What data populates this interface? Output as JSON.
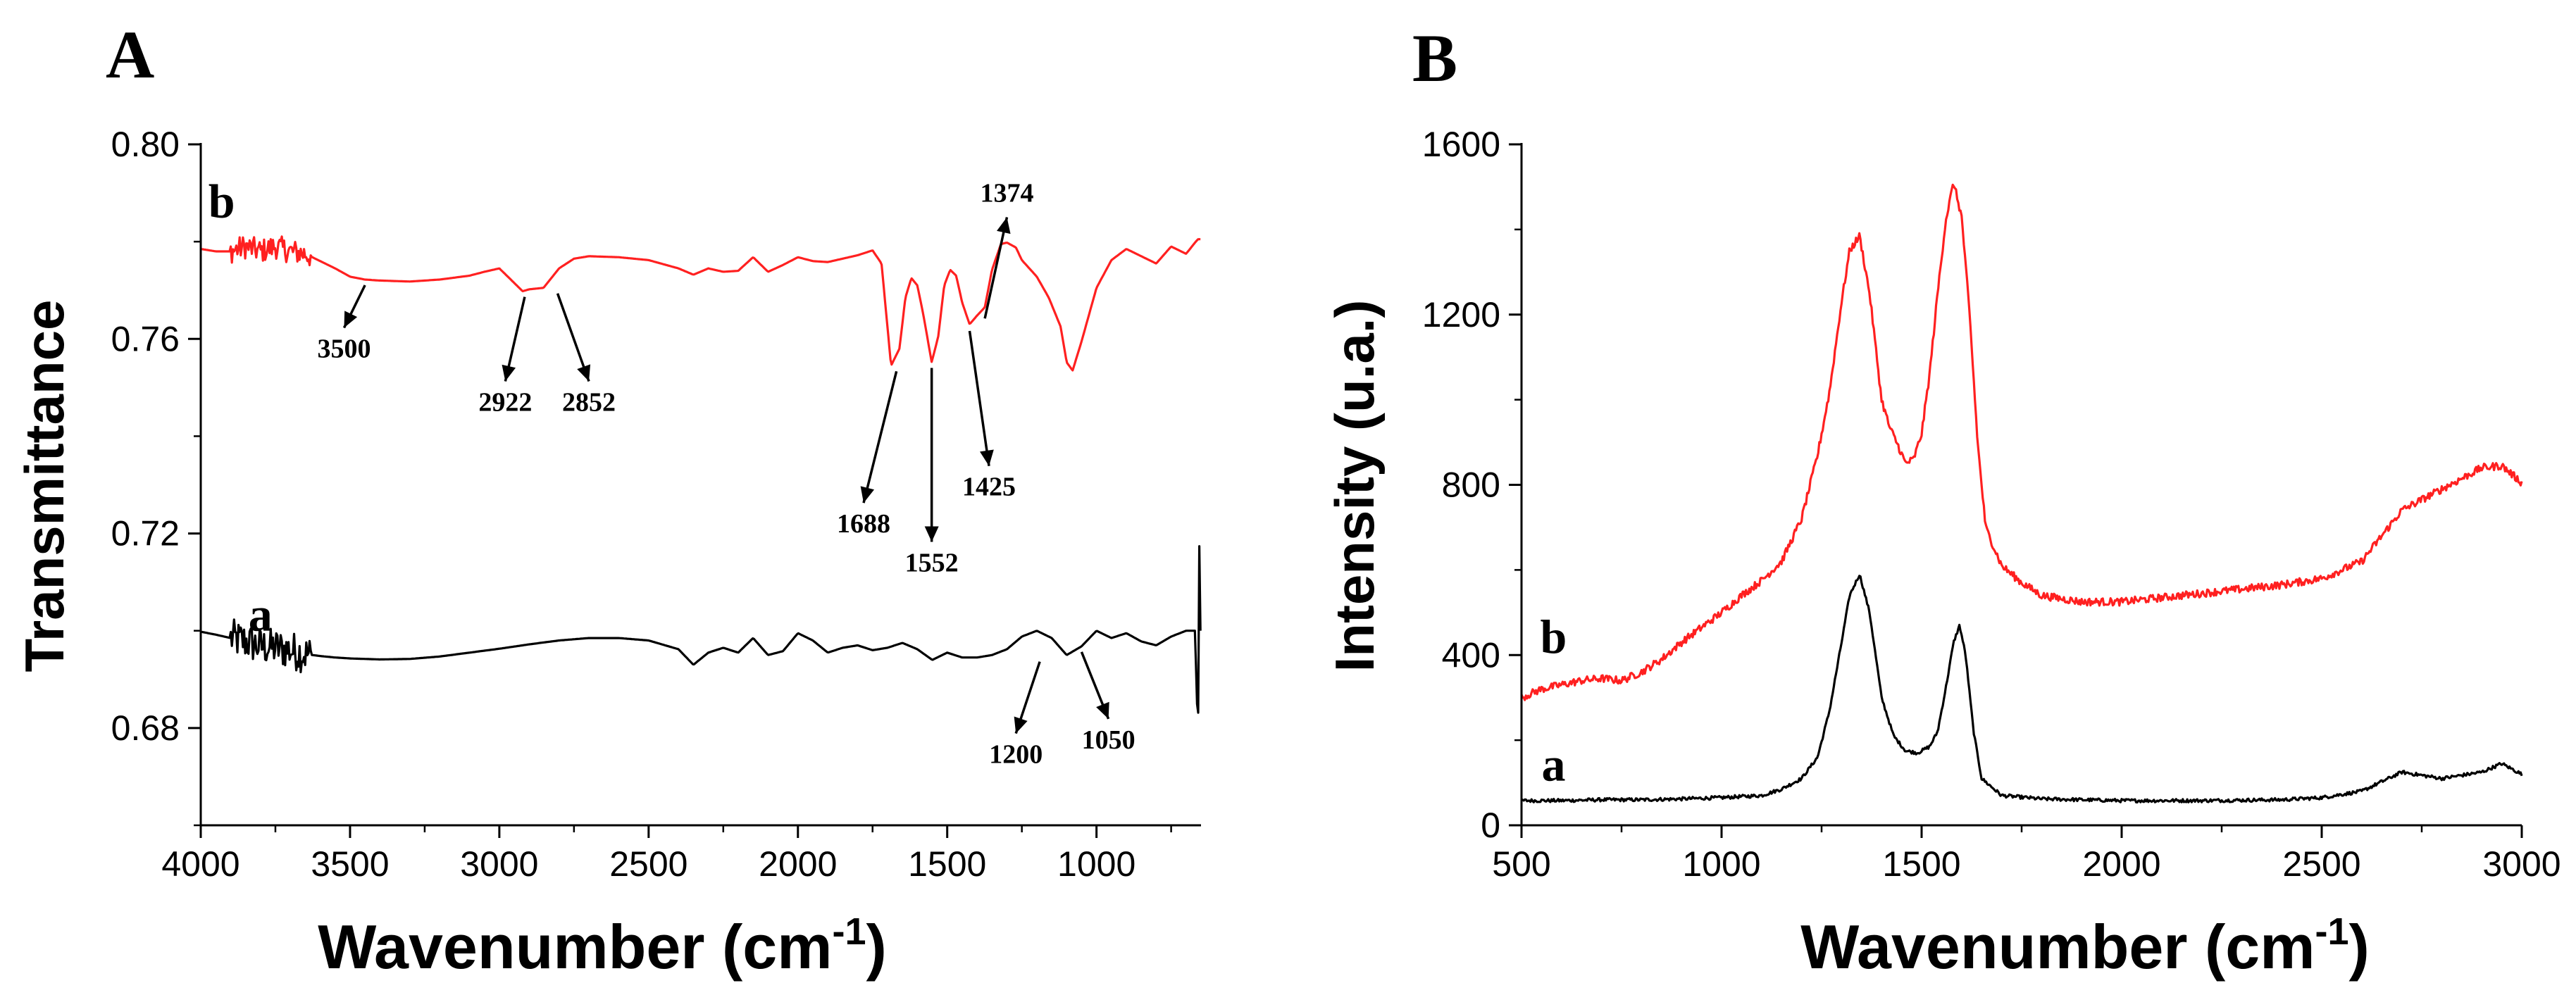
{
  "colors": {
    "a": "#000000",
    "b": "#ff2020",
    "axis": "#000000",
    "text": "#000000"
  },
  "chart_data": [
    {
      "panel": "A",
      "type": "line",
      "technique": "FTIR",
      "xlabel": "Wavenumber",
      "xunit_base": "cm",
      "xunit_exp": "-1",
      "ylabel": "Transmittance",
      "xlim": [
        4000,
        650
      ],
      "ylim": [
        0.66,
        0.8
      ],
      "xticks": [
        4000,
        3500,
        3000,
        2500,
        2000,
        1500,
        1000
      ],
      "yticks": [
        0.68,
        0.72,
        0.76,
        0.8
      ],
      "ytick_labels": [
        "0.68",
        "0.72",
        "0.76",
        "0.80"
      ],
      "series": [
        {
          "name": "a",
          "label": "a",
          "color": "#000000",
          "label_at": [
            3800,
            0.7
          ],
          "x": [
            4000,
            3950,
            3900,
            3850,
            3800,
            3750,
            3700,
            3650,
            3600,
            3550,
            3500,
            3450,
            3400,
            3300,
            3200,
            3100,
            3000,
            2900,
            2800,
            2700,
            2600,
            2500,
            2400,
            2350,
            2300,
            2250,
            2200,
            2150,
            2100,
            2050,
            2000,
            1950,
            1900,
            1850,
            1800,
            1750,
            1700,
            1650,
            1600,
            1550,
            1500,
            1450,
            1400,
            1350,
            1300,
            1250,
            1200,
            1150,
            1100,
            1050,
            1000,
            950,
            900,
            850,
            800,
            750,
            700,
            670,
            660,
            655,
            652
          ],
          "values": [
            0.6998,
            0.6992,
            0.6985,
            0.6978,
            0.6968,
            0.6965,
            0.696,
            0.6952,
            0.6948,
            0.6945,
            0.6943,
            0.6942,
            0.6941,
            0.6942,
            0.6947,
            0.6955,
            0.6963,
            0.6972,
            0.698,
            0.6985,
            0.6985,
            0.698,
            0.6962,
            0.693,
            0.6955,
            0.6965,
            0.6955,
            0.6985,
            0.695,
            0.6958,
            0.6995,
            0.698,
            0.6955,
            0.6965,
            0.697,
            0.696,
            0.6965,
            0.6975,
            0.6962,
            0.694,
            0.6955,
            0.6945,
            0.6945,
            0.695,
            0.6962,
            0.6988,
            0.7,
            0.6985,
            0.695,
            0.6968,
            0.7,
            0.6985,
            0.6995,
            0.6978,
            0.697,
            0.6988,
            0.7,
            0.7,
            0.678,
            0.724,
            0.7
          ],
          "noise": [
            [
              3900,
              3630,
              0.004
            ]
          ]
        },
        {
          "name": "b",
          "label": "b",
          "color": "#ff2020",
          "label_at": [
            3930,
            0.785
          ],
          "x": [
            4000,
            3950,
            3900,
            3850,
            3800,
            3750,
            3700,
            3650,
            3600,
            3550,
            3500,
            3450,
            3400,
            3300,
            3200,
            3100,
            3050,
            3000,
            2950,
            2922,
            2900,
            2852,
            2800,
            2750,
            2700,
            2600,
            2500,
            2400,
            2350,
            2300,
            2250,
            2200,
            2150,
            2100,
            2050,
            2000,
            1950,
            1900,
            1850,
            1800,
            1750,
            1720,
            1688,
            1660,
            1640,
            1620,
            1600,
            1580,
            1552,
            1530,
            1510,
            1490,
            1470,
            1450,
            1425,
            1400,
            1374,
            1350,
            1320,
            1300,
            1270,
            1250,
            1200,
            1160,
            1120,
            1100,
            1080,
            1050,
            1000,
            950,
            900,
            850,
            800,
            750,
            700,
            670,
            660,
            652
          ],
          "values": [
            0.7785,
            0.778,
            0.778,
            0.779,
            0.778,
            0.779,
            0.778,
            0.7775,
            0.776,
            0.7745,
            0.7728,
            0.7722,
            0.772,
            0.7718,
            0.7722,
            0.773,
            0.7738,
            0.7745,
            0.7715,
            0.7698,
            0.7702,
            0.7705,
            0.7745,
            0.7765,
            0.777,
            0.7768,
            0.7762,
            0.7745,
            0.7732,
            0.7745,
            0.7738,
            0.774,
            0.7768,
            0.7738,
            0.7752,
            0.7768,
            0.776,
            0.7758,
            0.7765,
            0.7772,
            0.7782,
            0.7755,
            0.7545,
            0.758,
            0.7685,
            0.7725,
            0.771,
            0.765,
            0.7552,
            0.7605,
            0.771,
            0.7742,
            0.773,
            0.7675,
            0.763,
            0.7648,
            0.7665,
            0.7742,
            0.7795,
            0.7798,
            0.7788,
            0.7762,
            0.7728,
            0.7685,
            0.7625,
            0.7552,
            0.7535,
            0.7595,
            0.7705,
            0.7762,
            0.7785,
            0.777,
            0.7755,
            0.779,
            0.7775,
            0.7798,
            0.7805,
            0.7805
          ],
          "noise": [
            [
              3900,
              3630,
              0.0025
            ]
          ]
        }
      ],
      "annotations": [
        {
          "text": "3500",
          "peak": [
            3450,
            0.7722
          ],
          "label_at": [
            3520,
            0.7562
          ],
          "arrow": "down"
        },
        {
          "text": "2922",
          "peak": [
            2915,
            0.7698
          ],
          "label_at": [
            2980,
            0.7452
          ],
          "arrow": "down"
        },
        {
          "text": "2852",
          "peak": [
            2805,
            0.7705
          ],
          "label_at": [
            2700,
            0.7452
          ],
          "arrow": "down"
        },
        {
          "text": "1688",
          "peak": [
            1670,
            0.7545
          ],
          "label_at": [
            1780,
            0.7202
          ],
          "arrow": "down"
        },
        {
          "text": "1552",
          "peak": [
            1552,
            0.7552
          ],
          "label_at": [
            1552,
            0.7122
          ],
          "arrow": "down"
        },
        {
          "text": "1425",
          "peak": [
            1425,
            0.7628
          ],
          "label_at": [
            1360,
            0.7278
          ],
          "arrow": "down"
        },
        {
          "text": "1374",
          "peak": [
            1374,
            0.7642
          ],
          "label_at": [
            1300,
            0.7882
          ],
          "arrow": "up"
        },
        {
          "text": "1200",
          "peak": [
            1190,
            0.6948
          ],
          "label_at": [
            1270,
            0.6728
          ],
          "arrow": "down"
        },
        {
          "text": "1050",
          "peak": [
            1050,
            0.6968
          ],
          "label_at": [
            960,
            0.6758
          ],
          "arrow": "down"
        }
      ]
    },
    {
      "panel": "B",
      "type": "line",
      "technique": "Raman",
      "xlabel": "Wavenumber",
      "xunit_base": "cm",
      "xunit_exp": "-1",
      "ylabel": "Intensity (u.a.)",
      "xlim": [
        500,
        3000
      ],
      "ylim": [
        0,
        1600
      ],
      "xticks": [
        500,
        1000,
        1500,
        2000,
        2500,
        3000
      ],
      "yticks": [
        0,
        400,
        800,
        1200,
        1600
      ],
      "series": [
        {
          "name": "a",
          "label": "a",
          "color": "#000000",
          "label_at": [
            580,
            105
          ],
          "x": [
            500,
            600,
            700,
            800,
            900,
            1000,
            1100,
            1150,
            1200,
            1240,
            1270,
            1300,
            1320,
            1345,
            1370,
            1400,
            1430,
            1460,
            1490,
            1520,
            1540,
            1560,
            1580,
            1595,
            1610,
            1630,
            1650,
            1700,
            1800,
            2000,
            2200,
            2400,
            2500,
            2600,
            2700,
            2800,
            2900,
            2950,
            3000
          ],
          "values": [
            58,
            58,
            60,
            60,
            62,
            65,
            70,
            85,
            110,
            160,
            270,
            430,
            540,
            590,
            500,
            300,
            210,
            175,
            170,
            185,
            220,
            320,
            430,
            470,
            400,
            220,
            110,
            70,
            62,
            58,
            58,
            60,
            65,
            80,
            125,
            110,
            125,
            145,
            120
          ],
          "noise": [
            [
              500,
              3000,
              4
            ]
          ]
        },
        {
          "name": "b",
          "label": "b",
          "color": "#ff2020",
          "label_at": [
            580,
            405
          ],
          "x": [
            500,
            550,
            600,
            650,
            700,
            750,
            800,
            850,
            900,
            950,
            1000,
            1050,
            1100,
            1150,
            1200,
            1240,
            1270,
            1300,
            1320,
            1345,
            1370,
            1400,
            1420,
            1440,
            1460,
            1480,
            1500,
            1520,
            1540,
            1560,
            1580,
            1600,
            1620,
            1640,
            1660,
            1700,
            1750,
            1800,
            1900,
            2000,
            2100,
            2200,
            2300,
            2400,
            2500,
            2600,
            2650,
            2700,
            2800,
            2900,
            2950,
            3000
          ],
          "values": [
            300,
            320,
            330,
            340,
            345,
            340,
            360,
            390,
            430,
            465,
            500,
            540,
            575,
            620,
            720,
            870,
            1020,
            1230,
            1350,
            1385,
            1250,
            1000,
            935,
            895,
            850,
            860,
            920,
            1060,
            1250,
            1420,
            1510,
            1430,
            1200,
            900,
            700,
            610,
            570,
            540,
            525,
            525,
            535,
            545,
            555,
            565,
            580,
            620,
            680,
            740,
            790,
            840,
            845,
            805
          ],
          "noise": [
            [
              500,
              3000,
              9
            ]
          ]
        }
      ],
      "annotations": []
    }
  ],
  "panels": {
    "A": {
      "label": "A",
      "ylabel": "Transmittance",
      "xlabel_main": "Wavenumber (cm",
      "xlabel_sup": "-1",
      "xlabel_close": ")"
    },
    "B": {
      "label": "B",
      "ylabel": "Intensity (u.a.)",
      "xlabel_main": "Wavenumber (cm",
      "xlabel_sup": "-1",
      "xlabel_close": ")"
    }
  }
}
